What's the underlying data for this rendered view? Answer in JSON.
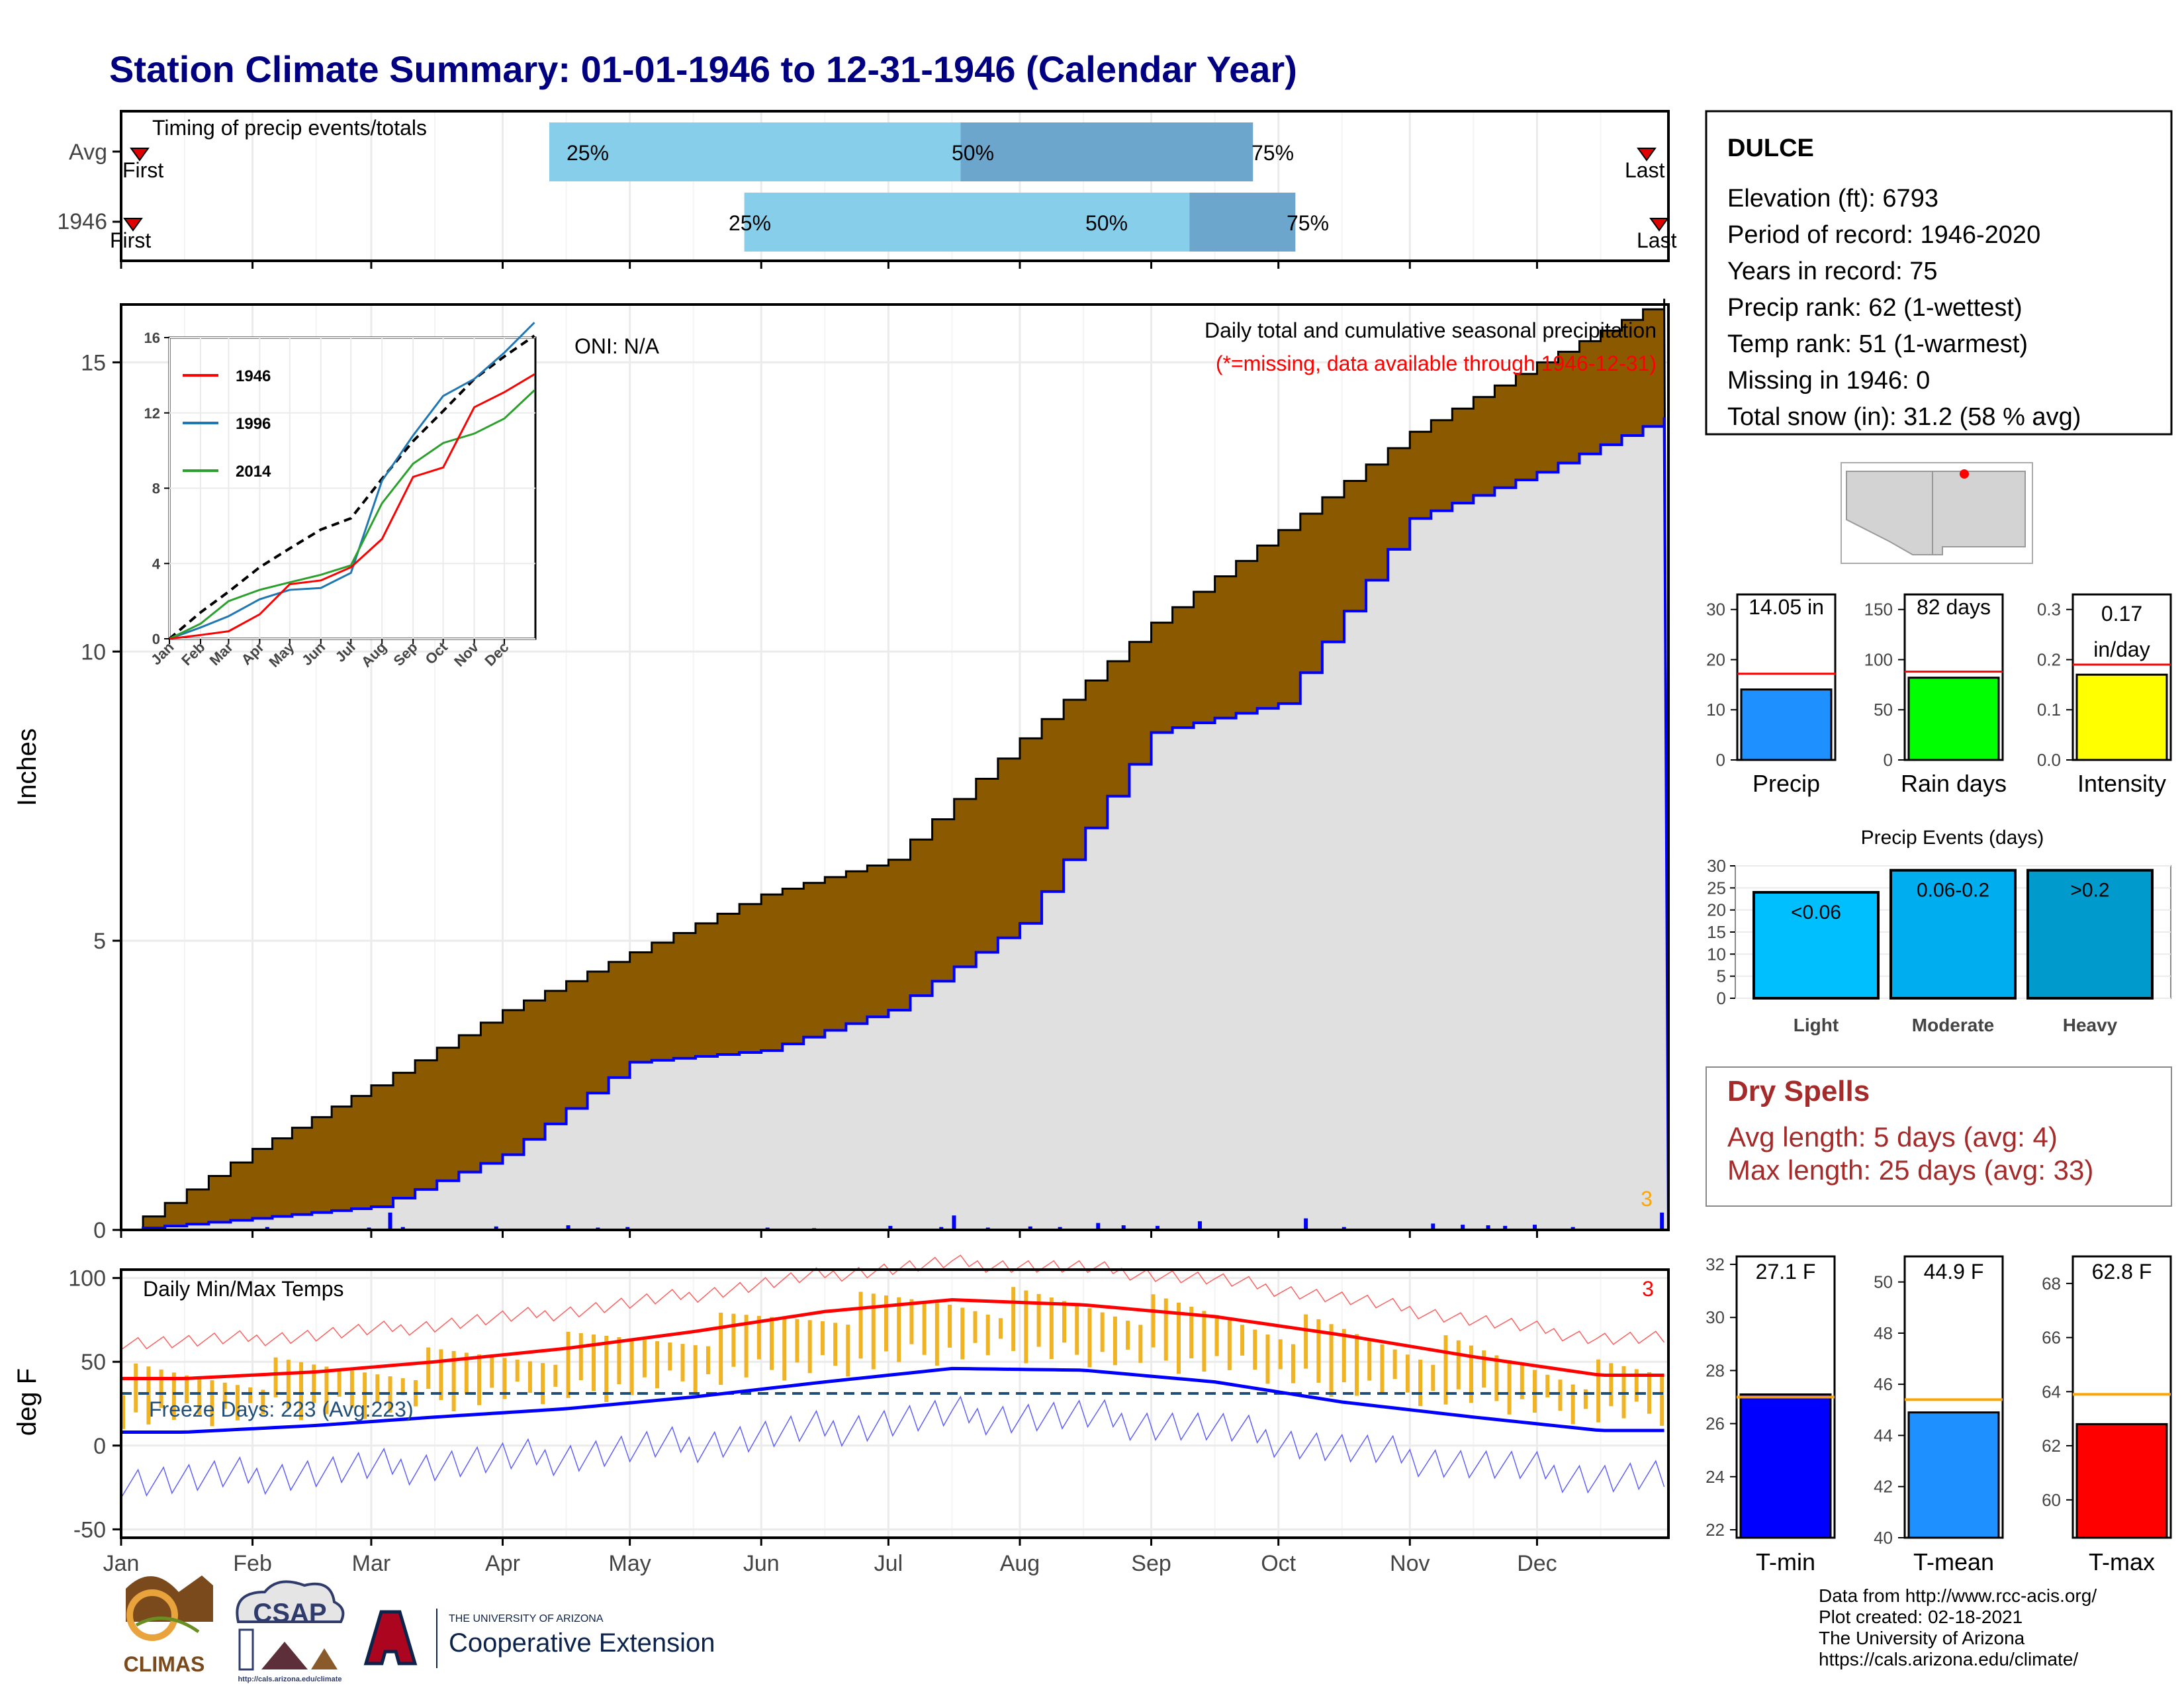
{
  "title": "Station Climate Summary: 01-01-1946 to 12-31-1946 (Calendar Year)",
  "colors": {
    "title": "#000080",
    "avg_bar": "#87CEEB",
    "avg_bar_dark": "#6CA6CD",
    "brown": "#8B5A00",
    "gray_fill": "#E0E0E0",
    "blue_line": "#0000FF",
    "orange": "#FFA500",
    "red": "#FF0000",
    "temp_bar": "#F0B323",
    "dry_text": "#A52A2A"
  },
  "months": [
    "Jan",
    "Feb",
    "Mar",
    "Apr",
    "May",
    "Jun",
    "Jul",
    "Aug",
    "Sep",
    "Oct",
    "Nov",
    "Dec"
  ],
  "timing_panel": {
    "title": "Timing of precip events/totals",
    "rows": [
      {
        "label": "Avg",
        "first": "First",
        "last": "Last",
        "q25": "25%",
        "q50": "50%",
        "q75": "75%"
      },
      {
        "label": "1946",
        "first": "First",
        "last": "Last",
        "q25": "25%",
        "q50": "50%",
        "q75": "75%"
      }
    ]
  },
  "precip_panel": {
    "title": "Daily total and cumulative seasonal precipitation",
    "missing_note": "(*=missing, data available through 1946-12-31)",
    "oni": "ONI: N/A",
    "ylabel": "Inches",
    "yticks": [
      "0",
      "5",
      "10",
      "15"
    ],
    "corner_count": "3"
  },
  "inset": {
    "yticks": [
      "0",
      "4",
      "8",
      "12",
      "16"
    ],
    "xticks": [
      "Jan",
      "Feb",
      "Mar",
      "Apr",
      "May",
      "Jun",
      "Jul",
      "Aug",
      "Sep",
      "Oct",
      "Nov",
      "Dec"
    ],
    "legend": [
      {
        "name": "1946",
        "color": "#FF0000"
      },
      {
        "name": "1996",
        "color": "#1F77B4"
      },
      {
        "name": "2014",
        "color": "#2CA02C"
      }
    ]
  },
  "temp_panel": {
    "title": "Daily Min/Max Temps",
    "ylabel": "deg F",
    "yticks": [
      "100",
      "50",
      "0",
      "-50"
    ],
    "freeze": "Freeze Days: 223 (Avg:223)",
    "corner_count": "3"
  },
  "station": {
    "name": "DULCE",
    "lines": [
      "Elevation (ft): 6793",
      "Period of record: 1946-2020",
      "Years in record: 75",
      "Precip rank: 62 (1-wettest)",
      "Temp rank: 51 (1-warmest)",
      "Missing in 1946: 0",
      "Total snow (in): 31.2 (58 % avg)"
    ]
  },
  "mini_bars": [
    {
      "label": "Precip",
      "value_text": "14.05 in",
      "yticks": [
        "0",
        "10",
        "20",
        "30"
      ]
    },
    {
      "label": "Rain days",
      "value_text": "82 days",
      "yticks": [
        "0",
        "50",
        "100",
        "150"
      ]
    },
    {
      "label": "Intensity",
      "value_text": "0.17 in/day",
      "value_line1": "0.17",
      "value_line2": "in/day",
      "yticks": [
        "0.0",
        "0.1",
        "0.2",
        "0.3"
      ]
    }
  ],
  "events": {
    "title": "Precip Events (days)",
    "yticks": [
      "0",
      "5",
      "10",
      "15",
      "20",
      "25",
      "30"
    ],
    "bars": [
      {
        "label": "Light",
        "range": "<0.06"
      },
      {
        "label": "Moderate",
        "range": "0.06-0.2"
      },
      {
        "label": "Heavy",
        "range": ">0.2"
      }
    ]
  },
  "dry_spells": {
    "title": "Dry Spells",
    "avg": "Avg length: 5 days (avg: 4)",
    "max": "Max length: 25 days (avg: 33)"
  },
  "temp_bars": [
    {
      "label": "T-min",
      "value_text": "27.1 F",
      "yticks": [
        "22",
        "24",
        "26",
        "28",
        "30",
        "32"
      ]
    },
    {
      "label": "T-mean",
      "value_text": "44.9 F",
      "yticks": [
        "40",
        "42",
        "44",
        "46",
        "48",
        "50"
      ]
    },
    {
      "label": "T-max",
      "value_text": "62.8 F",
      "yticks": [
        "60",
        "62",
        "64",
        "66",
        "68"
      ]
    }
  ],
  "credits": [
    "Data from http://www.rcc-acis.org/",
    "Plot created: 02-18-2021",
    "The University of Arizona",
    "https://cals.arizona.edu/climate/"
  ],
  "logos": {
    "climas": "CLIMAS",
    "csap": "CSAP",
    "csap_url": "http://cals.arizona.edu/climate",
    "ua_small": "THE UNIVERSITY OF ARIZONA",
    "coop": "Cooperative Extension"
  },
  "chart_data": [
    {
      "type": "bar",
      "title": "Timing of precip events/totals",
      "categories": [
        "Avg",
        "1946"
      ],
      "series": [
        {
          "name": "25%",
          "values": [
            "Apr 12",
            "May 28"
          ]
        },
        {
          "name": "50%",
          "values": [
            "Jul 18",
            "Sep 10"
          ]
        },
        {
          "name": "75%",
          "values": [
            "Sep 25",
            "Oct 5"
          ]
        }
      ]
    },
    {
      "type": "area",
      "title": "Daily total and cumulative seasonal precipitation",
      "ylabel": "Inches",
      "ylim": [
        0,
        16
      ],
      "x": [
        "Jan 1",
        "Feb 1",
        "Mar 1",
        "Apr 1",
        "May 1",
        "Jun 1",
        "Jul 1",
        "Aug 1",
        "Sep 1",
        "Oct 1",
        "Nov 1",
        "Dec 1",
        "Dec 31"
      ],
      "series": [
        {
          "name": "Average cumulative",
          "values": [
            0,
            1.4,
            2.5,
            3.8,
            4.8,
            5.8,
            6.4,
            8.5,
            10.5,
            12.1,
            13.8,
            15.0,
            16.1
          ]
        },
        {
          "name": "1946 cumulative",
          "values": [
            0,
            0.2,
            0.4,
            1.3,
            2.9,
            3.1,
            3.8,
            5.3,
            8.6,
            9.1,
            12.3,
            13.1,
            14.05
          ]
        }
      ]
    },
    {
      "type": "line",
      "title": "Daily Min/Max Temps",
      "ylabel": "deg F",
      "ylim": [
        -55,
        105
      ],
      "x": [
        "Jan",
        "Feb",
        "Mar",
        "Apr",
        "May",
        "Jun",
        "Jul",
        "Aug",
        "Sep",
        "Oct",
        "Nov",
        "Dec"
      ],
      "series": [
        {
          "name": "Avg max",
          "values": [
            40,
            44,
            50,
            58,
            68,
            80,
            87,
            84,
            77,
            66,
            53,
            42
          ]
        },
        {
          "name": "Avg min",
          "values": [
            8,
            12,
            17,
            22,
            29,
            38,
            46,
            45,
            38,
            26,
            17,
            9
          ]
        }
      ]
    },
    {
      "type": "bar",
      "categories": [
        "Precip",
        "Rain days",
        "Intensity"
      ],
      "series": [
        {
          "name": "1946",
          "values": [
            14.05,
            82,
            0.17
          ]
        },
        {
          "name": "Avg",
          "values": [
            17.2,
            88,
            0.19
          ]
        }
      ]
    },
    {
      "type": "bar",
      "title": "Precip Events (days)",
      "categories": [
        "Light",
        "Moderate",
        "Heavy"
      ],
      "series": [
        {
          "name": "Days",
          "values": [
            24,
            29,
            29
          ]
        }
      ],
      "ylim": [
        0,
        30
      ]
    },
    {
      "type": "bar",
      "categories": [
        "T-min",
        "T-mean",
        "T-max"
      ],
      "series": [
        {
          "name": "1946",
          "values": [
            27.1,
            44.9,
            62.8
          ]
        },
        {
          "name": "Avg",
          "values": [
            27.0,
            45.4,
            63.9
          ]
        }
      ]
    }
  ]
}
